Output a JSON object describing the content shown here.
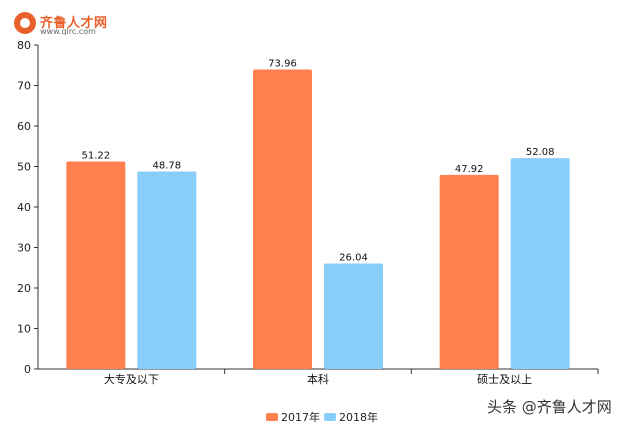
{
  "logo": {
    "text": "齐鲁人才网",
    "url": "www.qlrc.com"
  },
  "watermark": "头条 @齐鲁人才网",
  "chart_data": {
    "type": "bar",
    "title": "",
    "xlabel": "",
    "ylabel": "",
    "ylim": [
      0,
      80
    ],
    "yticks": [
      0,
      10,
      20,
      30,
      40,
      50,
      60,
      70,
      80
    ],
    "categories": [
      "大专及以下",
      "本科",
      "硕士及以上"
    ],
    "series": [
      {
        "name": "2017年",
        "color": "#ff7f4f",
        "values": [
          51.22,
          73.96,
          47.92
        ]
      },
      {
        "name": "2018年",
        "color": "#87cefa",
        "values": [
          48.78,
          26.04,
          52.08
        ]
      }
    ],
    "data_labels": true,
    "grid": false,
    "legend": "bottom-center"
  }
}
